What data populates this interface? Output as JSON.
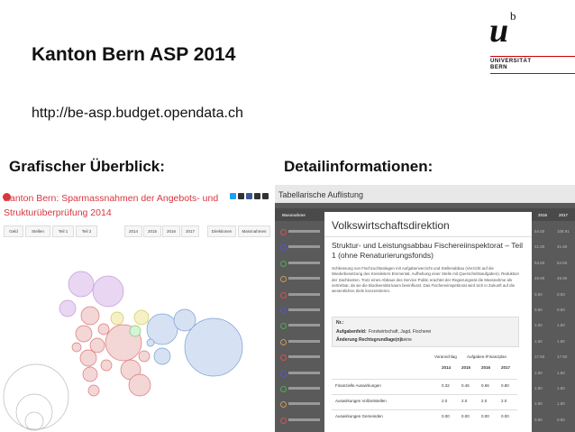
{
  "slide": {
    "title": "Kanton Bern ASP 2014",
    "url": "http://be-asp.budget.opendata.ch",
    "left_heading": "Grafischer Überblick:",
    "right_heading": "Detailinformationen:"
  },
  "logo": {
    "mark": "u",
    "superscript": "b",
    "line1": "UNIVERSITÄT",
    "line2": "BERN"
  },
  "overview": {
    "title": "Kanton Bern: Sparmassnahmen der Angebots- und Strukturüberprüfung 2014",
    "buttons": [
      "Geld",
      "Stellen",
      "Teil 1",
      "Teil 2",
      "2014",
      "2015",
      "2016",
      "2017",
      "Direktionen",
      "Massnahmen"
    ]
  },
  "details": {
    "title": "Tabellarische Auflistung",
    "table_header": [
      "Massnahme",
      "2014",
      "2015",
      "2016",
      "2017"
    ],
    "rows": [
      [
        "54.50",
        "108.91"
      ],
      [
        "41.60",
        "41.60"
      ],
      [
        "54.50",
        "54.50"
      ],
      [
        "49.90",
        "49.90"
      ],
      [
        "0.50",
        "0.50"
      ],
      [
        "0.60",
        "0.60"
      ],
      [
        "1.50",
        "1.50"
      ],
      [
        "1.60",
        "1.60"
      ],
      [
        "17.50",
        "17.50"
      ],
      [
        "1.60",
        "1.60"
      ],
      [
        "1.90",
        "1.90"
      ],
      [
        "1.90",
        "1.90"
      ],
      [
        "0.90",
        "0.90"
      ],
      [
        "1.00",
        "1.00"
      ]
    ],
    "modal": {
      "department": "Volkswirtschaftsdirektion",
      "measure": "Struktur- und Leistungsabbau Fischereiinspektorat – Teil 1 (ohne Renaturierungsfonds)",
      "description": "Schliessung von Fischzuchtanlagen mit Aufgabenverzicht und Stellenabbau (Verzicht auf die Wiederbesetzung des Kreisleiters Emmental, Aufhebung einer Stelle mit Querschnittsaufgaben). Reduktion der Sachkosten. Trotz eines Abbaus des Service Public erachtet der Regierungsrat die Massnahme als vertretbar, da sie die Biodiversität kaum beeinflusst. Das Fischereiinspektorat wird sich in Zukunft auf die wesentlichen Ziele konzentrieren.",
      "number_label": "Nr.:",
      "field_label": "Aufgabenfeld:",
      "field": "Forstwirtschaft, Jagd, Fischerei",
      "law_label": "Änderung Rechtsgrundlage(n):",
      "law": "keine",
      "budget_label": "Voranschlag",
      "plan_label": "Aufgaben-/Finanzplan",
      "years": [
        "2014",
        "2015",
        "2016",
        "2017"
      ],
      "rows": [
        {
          "label": "Finanzielle Auswirkungen",
          "values": [
            "0.32",
            "0.46",
            "0.66",
            "0.80"
          ]
        },
        {
          "label": "Auswirkungen Vollzeitstellen",
          "values": [
            "2.0",
            "2.0",
            "2.0",
            "2.0"
          ]
        },
        {
          "label": "Auswirkungen Gemeinden",
          "values": [
            "0.00",
            "0.00",
            "0.00",
            "0.00"
          ]
        }
      ]
    }
  }
}
